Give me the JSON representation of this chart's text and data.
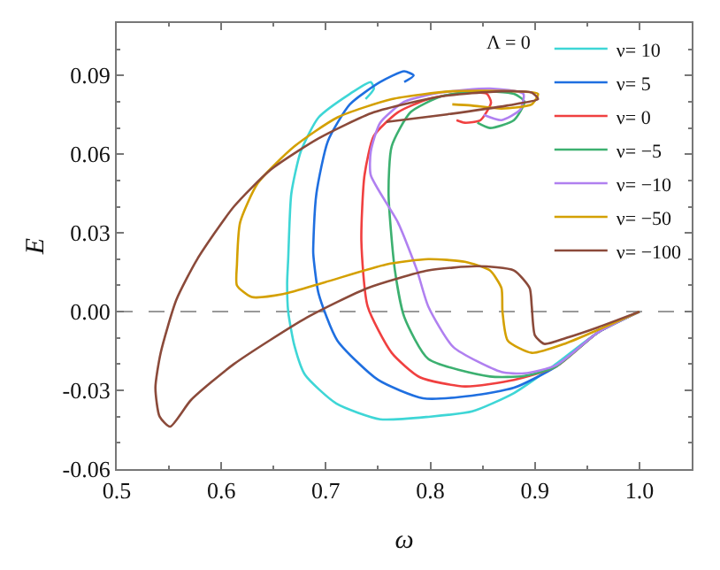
{
  "chart_data": {
    "type": "line",
    "xlabel": "ω",
    "ylabel": "E",
    "legend_title": "Λ = 0",
    "xlim": [
      0.5,
      1.05
    ],
    "ylim": [
      -0.06,
      0.11
    ],
    "xticks": [
      0.5,
      0.6,
      0.7,
      0.8,
      0.9,
      {
        "value": 1,
        "label": "1.0"
      }
    ],
    "yticks": [
      -0.06,
      -0.03,
      {
        "value": 0,
        "label": "0.00"
      },
      0.03,
      0.06,
      0.09
    ],
    "grid": false,
    "legend": "top right",
    "marker": "none",
    "line_style": "solid",
    "ref_lines": [
      {
        "axis": "y",
        "value": 0,
        "color": "#999999",
        "line_style": "dashed"
      }
    ],
    "series": [
      {
        "name": "ν= 10",
        "color": "#3ed6d6",
        "x": [
          1.0,
          0.96,
          0.92,
          0.88,
          0.84,
          0.8,
          0.752,
          0.71,
          0.68,
          0.67,
          0.664,
          0.663,
          0.664,
          0.667,
          0.676,
          0.693,
          0.723,
          0.743,
          0.746,
          0.738
        ],
        "values": [
          0.0,
          -0.008,
          -0.02,
          -0.031,
          -0.038,
          -0.04,
          -0.041,
          -0.035,
          -0.024,
          -0.013,
          0.0,
          0.011,
          0.02,
          0.045,
          0.061,
          0.074,
          0.083,
          0.0875,
          0.085,
          0.081
        ]
      },
      {
        "name": "ν= 5",
        "color": "#1f6fe0",
        "x": [
          1.0,
          0.96,
          0.92,
          0.88,
          0.84,
          0.793,
          0.75,
          0.711,
          0.693,
          0.688,
          0.688,
          0.691,
          0.702,
          0.723,
          0.752,
          0.775,
          0.784,
          0.775
        ],
        "values": [
          0.0,
          -0.008,
          -0.021,
          -0.029,
          -0.032,
          -0.033,
          -0.026,
          -0.011,
          0.007,
          0.022,
          0.025,
          0.045,
          0.065,
          0.079,
          0.0875,
          0.0916,
          0.09,
          0.0875
        ]
      },
      {
        "name": "ν= 0",
        "color": "#f04040",
        "x": [
          1.0,
          0.96,
          0.92,
          0.88,
          0.833,
          0.79,
          0.763,
          0.74,
          0.734,
          0.737,
          0.746,
          0.769,
          0.798,
          0.833,
          0.854,
          0.858,
          0.848,
          0.833,
          0.825
        ],
        "values": [
          0.0,
          -0.008,
          -0.021,
          -0.026,
          -0.0285,
          -0.025,
          -0.0157,
          0.002,
          0.027,
          0.052,
          0.067,
          0.076,
          0.081,
          0.0835,
          0.083,
          0.0797,
          0.073,
          0.072,
          0.073
        ]
      },
      {
        "name": "ν= −5",
        "color": "#3cb070",
        "x": [
          1.0,
          0.96,
          0.92,
          0.89,
          0.857,
          0.798,
          0.775,
          0.766,
          0.76,
          0.763,
          0.781,
          0.81,
          0.845,
          0.88,
          0.89,
          0.88,
          0.857,
          0.845
        ],
        "values": [
          0.0,
          -0.008,
          -0.021,
          -0.0245,
          -0.0247,
          -0.018,
          -0.002,
          0.016,
          0.045,
          0.063,
          0.076,
          0.082,
          0.084,
          0.083,
          0.08,
          0.073,
          0.07,
          0.072
        ]
      },
      {
        "name": "ν= −10",
        "color": "#b080f0",
        "x": [
          1.0,
          0.96,
          0.92,
          0.89,
          0.868,
          0.822,
          0.798,
          0.787,
          0.769,
          0.743,
          0.743,
          0.752,
          0.775,
          0.81,
          0.857,
          0.889,
          0.886,
          0.868,
          0.851
        ],
        "values": [
          0.0,
          -0.008,
          -0.0205,
          -0.0235,
          -0.023,
          -0.0135,
          0.002,
          0.016,
          0.034,
          0.052,
          0.061,
          0.072,
          0.08,
          0.0835,
          0.085,
          0.083,
          0.077,
          0.073,
          0.075
        ]
      },
      {
        "name": "ν= −50",
        "color": "#d4a000",
        "x": [
          1.0,
          0.96,
          0.93,
          0.897,
          0.874,
          0.869,
          0.868,
          0.857,
          0.833,
          0.798,
          0.758,
          0.699,
          0.659,
          0.629,
          0.615,
          0.615,
          0.618,
          0.635,
          0.67,
          0.711,
          0.763,
          0.821,
          0.88,
          0.903,
          0.897,
          0.868,
          0.839,
          0.821
        ],
        "values": [
          0.0,
          -0.007,
          -0.012,
          -0.0157,
          -0.011,
          0.0,
          0.009,
          0.0157,
          0.019,
          0.02,
          0.018,
          0.0112,
          0.0067,
          0.0056,
          0.01,
          0.018,
          0.034,
          0.049,
          0.063,
          0.074,
          0.081,
          0.084,
          0.084,
          0.083,
          0.079,
          0.0774,
          0.0786,
          0.079
        ]
      },
      {
        "name": "ν= −100",
        "color": "#8b4a3a",
        "x": [
          1.0,
          0.96,
          0.93,
          0.909,
          0.9,
          0.897,
          0.895,
          0.88,
          0.845,
          0.798,
          0.74,
          0.682,
          0.612,
          0.571,
          0.551,
          0.541,
          0.537,
          0.542,
          0.557,
          0.577,
          0.612,
          0.647,
          0.693,
          0.746,
          0.81,
          0.868,
          0.897,
          0.903,
          0.874,
          0.816,
          0.758
        ],
        "values": [
          0.0,
          -0.006,
          -0.01,
          -0.0123,
          -0.009,
          0.002,
          0.009,
          0.0157,
          0.0173,
          0.0157,
          0.009,
          -0.0022,
          -0.02,
          -0.0337,
          -0.0438,
          -0.04,
          -0.029,
          -0.0157,
          0.0045,
          0.02,
          0.04,
          0.054,
          0.066,
          0.076,
          0.082,
          0.084,
          0.0835,
          0.081,
          0.0786,
          0.0752,
          0.0723
        ]
      }
    ]
  }
}
